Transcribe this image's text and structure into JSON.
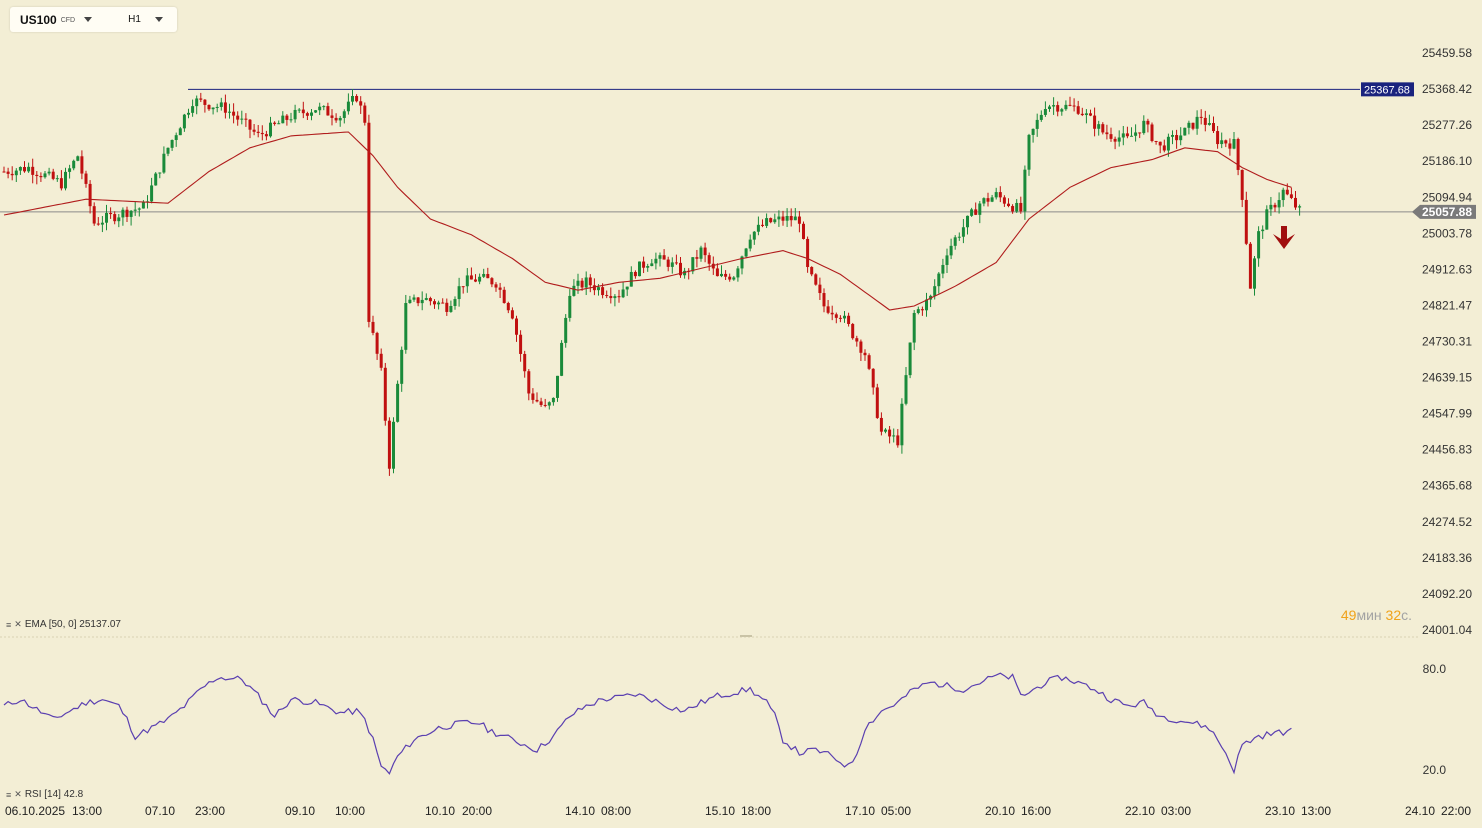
{
  "toolbar": {
    "symbol": "US100",
    "symbol_type": "CFD",
    "timeframe": "H1"
  },
  "indicators": {
    "ema_label": "EMA [50, 0] 25137.07",
    "rsi_label": "RSI [14] 42.8"
  },
  "timer": {
    "minutes": "49",
    "min_unit": "мин",
    "seconds": "32",
    "sec_unit": "с."
  },
  "colors": {
    "background": "#f3eed5",
    "up": "#1a8a3a",
    "down": "#c01010",
    "ema": "#b01c1c",
    "rsi": "#5a3fb0",
    "resistance": "#1a237e",
    "price_badge": "#7a7a7a"
  },
  "icons": {
    "indicator_settings": "settings-lines-icon",
    "indicator_close": "close-icon",
    "sell_signal": "arrow-down-icon"
  },
  "chart_data": {
    "type": "candlestick",
    "y_ticks": [
      "25459.58",
      "25368.42",
      "25277.26",
      "25186.10",
      "25094.94",
      "25003.78",
      "24912.63",
      "24821.47",
      "24730.31",
      "24639.15",
      "24547.99",
      "24456.83",
      "24365.68",
      "24274.52",
      "24183.36",
      "24092.20",
      "24001.04"
    ],
    "ylim": [
      24001.04,
      25459.58
    ],
    "x_ticks": [
      "06.10.2025",
      "13:00",
      "07.10",
      "23:00",
      "09.10",
      "10:00",
      "10.10",
      "20:00",
      "14.10",
      "08:00",
      "15.10",
      "18:00",
      "17.10",
      "05:00",
      "20.10",
      "16:00",
      "22.10",
      "03:00",
      "23.10",
      "13:00",
      "24.10",
      "22:00"
    ],
    "resistance_level": "25367.68",
    "current_price": "25057.88",
    "price_keypoints": [
      [
        0,
        25160
      ],
      [
        6,
        25170
      ],
      [
        14,
        25130
      ],
      [
        18,
        25200
      ],
      [
        22,
        25030
      ],
      [
        30,
        25060
      ],
      [
        34,
        25070
      ],
      [
        40,
        25220
      ],
      [
        46,
        25340
      ],
      [
        54,
        25320
      ],
      [
        62,
        25250
      ],
      [
        70,
        25300
      ],
      [
        76,
        25320
      ],
      [
        82,
        25300
      ],
      [
        86,
        25350
      ],
      [
        88,
        25290
      ],
      [
        89,
        24790
      ],
      [
        92,
        24650
      ],
      [
        94,
        24420
      ],
      [
        98,
        24820
      ],
      [
        102,
        24840
      ],
      [
        108,
        24820
      ],
      [
        112,
        24880
      ],
      [
        116,
        24890
      ],
      [
        120,
        24880
      ],
      [
        124,
        24800
      ],
      [
        128,
        24600
      ],
      [
        132,
        24560
      ],
      [
        134,
        24580
      ],
      [
        138,
        24860
      ],
      [
        142,
        24880
      ],
      [
        146,
        24860
      ],
      [
        150,
        24850
      ],
      [
        154,
        24910
      ],
      [
        158,
        24940
      ],
      [
        162,
        24930
      ],
      [
        166,
        24900
      ],
      [
        170,
        24960
      ],
      [
        174,
        24890
      ],
      [
        178,
        24900
      ],
      [
        182,
        25000
      ],
      [
        186,
        25030
      ],
      [
        190,
        25040
      ],
      [
        194,
        25040
      ],
      [
        196,
        24910
      ],
      [
        200,
        24820
      ],
      [
        204,
        24800
      ],
      [
        210,
        24700
      ],
      [
        214,
        24500
      ],
      [
        218,
        24480
      ],
      [
        222,
        24800
      ],
      [
        226,
        24840
      ],
      [
        230,
        24960
      ],
      [
        234,
        25020
      ],
      [
        238,
        25080
      ],
      [
        242,
        25100
      ],
      [
        248,
        25060
      ],
      [
        250,
        25240
      ],
      [
        254,
        25330
      ],
      [
        262,
        25320
      ],
      [
        268,
        25260
      ],
      [
        274,
        25240
      ],
      [
        278,
        25280
      ],
      [
        282,
        25220
      ],
      [
        288,
        25260
      ],
      [
        292,
        25300
      ],
      [
        296,
        25240
      ],
      [
        300,
        25230
      ],
      [
        302,
        25100
      ],
      [
        304,
        24870
      ],
      [
        306,
        25000
      ],
      [
        308,
        25050
      ],
      [
        312,
        25110
      ],
      [
        316,
        25060
      ]
    ],
    "ema_keypoints": [
      [
        0,
        25050
      ],
      [
        20,
        25090
      ],
      [
        40,
        25080
      ],
      [
        50,
        25160
      ],
      [
        60,
        25220
      ],
      [
        70,
        25250
      ],
      [
        84,
        25260
      ],
      [
        90,
        25200
      ],
      [
        96,
        25120
      ],
      [
        104,
        25040
      ],
      [
        114,
        25000
      ],
      [
        124,
        24940
      ],
      [
        132,
        24880
      ],
      [
        140,
        24860
      ],
      [
        150,
        24880
      ],
      [
        160,
        24890
      ],
      [
        172,
        24920
      ],
      [
        180,
        24940
      ],
      [
        190,
        24960
      ],
      [
        196,
        24940
      ],
      [
        204,
        24900
      ],
      [
        212,
        24840
      ],
      [
        216,
        24810
      ],
      [
        222,
        24820
      ],
      [
        232,
        24870
      ],
      [
        242,
        24930
      ],
      [
        250,
        25040
      ],
      [
        260,
        25120
      ],
      [
        270,
        25170
      ],
      [
        280,
        25190
      ],
      [
        288,
        25220
      ],
      [
        296,
        25210
      ],
      [
        302,
        25170
      ],
      [
        308,
        25140
      ],
      [
        314,
        25120
      ]
    ],
    "rsi_ticks": [
      "80.0",
      "20.0"
    ],
    "rsi_keypoints": [
      [
        0,
        58
      ],
      [
        4,
        62
      ],
      [
        8,
        56
      ],
      [
        12,
        50
      ],
      [
        16,
        55
      ],
      [
        20,
        60
      ],
      [
        24,
        62
      ],
      [
        28,
        58
      ],
      [
        30,
        50
      ],
      [
        32,
        40
      ],
      [
        36,
        45
      ],
      [
        40,
        50
      ],
      [
        44,
        58
      ],
      [
        48,
        68
      ],
      [
        52,
        75
      ],
      [
        58,
        74
      ],
      [
        62,
        64
      ],
      [
        66,
        52
      ],
      [
        70,
        62
      ],
      [
        76,
        60
      ],
      [
        82,
        54
      ],
      [
        86,
        55
      ],
      [
        88,
        50
      ],
      [
        90,
        38
      ],
      [
        92,
        22
      ],
      [
        94,
        18
      ],
      [
        96,
        28
      ],
      [
        100,
        38
      ],
      [
        106,
        45
      ],
      [
        112,
        48
      ],
      [
        116,
        48
      ],
      [
        118,
        44
      ],
      [
        122,
        40
      ],
      [
        126,
        36
      ],
      [
        130,
        32
      ],
      [
        134,
        40
      ],
      [
        138,
        52
      ],
      [
        142,
        58
      ],
      [
        146,
        62
      ],
      [
        150,
        63
      ],
      [
        154,
        65
      ],
      [
        158,
        62
      ],
      [
        162,
        58
      ],
      [
        166,
        55
      ],
      [
        170,
        60
      ],
      [
        174,
        64
      ],
      [
        178,
        66
      ],
      [
        182,
        68
      ],
      [
        186,
        60
      ],
      [
        188,
        52
      ],
      [
        190,
        38
      ],
      [
        194,
        30
      ],
      [
        198,
        32
      ],
      [
        202,
        28
      ],
      [
        206,
        22
      ],
      [
        208,
        30
      ],
      [
        210,
        45
      ],
      [
        214,
        55
      ],
      [
        218,
        60
      ],
      [
        222,
        68
      ],
      [
        226,
        72
      ],
      [
        230,
        70
      ],
      [
        234,
        68
      ],
      [
        238,
        72
      ],
      [
        242,
        76
      ],
      [
        246,
        75
      ],
      [
        248,
        64
      ],
      [
        250,
        66
      ],
      [
        254,
        72
      ],
      [
        258,
        75
      ],
      [
        262,
        72
      ],
      [
        266,
        68
      ],
      [
        270,
        62
      ],
      [
        274,
        58
      ],
      [
        278,
        60
      ],
      [
        282,
        52
      ],
      [
        286,
        50
      ],
      [
        290,
        48
      ],
      [
        294,
        45
      ],
      [
        296,
        38
      ],
      [
        298,
        30
      ],
      [
        300,
        20
      ],
      [
        302,
        35
      ],
      [
        306,
        40
      ],
      [
        310,
        42
      ],
      [
        314,
        43
      ]
    ]
  }
}
